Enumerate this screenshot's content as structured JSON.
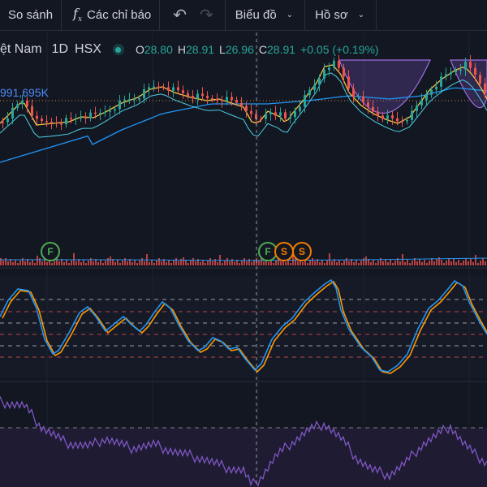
{
  "toolbar": {
    "compare_label": "So sánh",
    "indicators_label": "Các chỉ báo",
    "chart_label": "Biểu đồ",
    "profile_label": "Hồ sơ"
  },
  "legend": {
    "symbol": "ệt Nam",
    "interval": "1D",
    "exchange": "HSX",
    "open_key": "O",
    "open": "28.80",
    "high_key": "H",
    "high": "28.91",
    "low_key": "L",
    "low": "26.96",
    "close_key": "C",
    "close": "28.91",
    "change": "+0.05 (+0.19%)"
  },
  "volume_value": "991,695K",
  "markers": [
    {
      "letter": "F",
      "kind": "f"
    },
    {
      "letter": "F",
      "kind": "f"
    },
    {
      "letter": "S",
      "kind": "s"
    },
    {
      "letter": "S",
      "kind": "s"
    }
  ],
  "colors": {
    "up": "#26a69a",
    "down": "#ef5350",
    "ma_fast": "#f5c542",
    "ma_slow": "#2196f3",
    "stoch_k": "#2196f3",
    "stoch_d": "#ff9800",
    "rsi": "#7e57c2",
    "background": "#131722"
  },
  "icons": {
    "compare": "plus-circle-icon",
    "indicators": "fx-icon",
    "undo": "undo-icon",
    "redo": "redo-icon",
    "chevron": "chevron-down-icon"
  }
}
